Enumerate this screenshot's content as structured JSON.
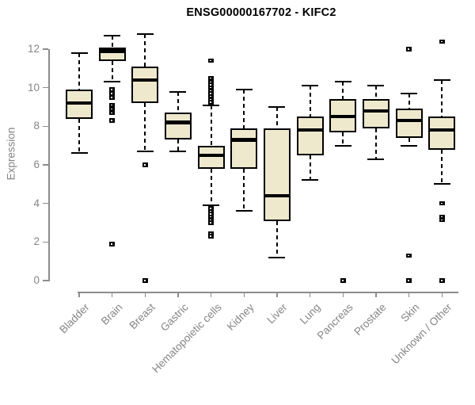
{
  "header": {
    "title": "ENSG00000167702 - KIFC2"
  },
  "colors": {
    "background": "#ffffff",
    "title": "#000000",
    "axis": "#8c8c8c",
    "tick_label": "#858585",
    "box_fill": "#eee8cd",
    "box_border": "#000000",
    "median": "#000000",
    "whisker": "#000000",
    "outlier": "#000000",
    "outlier_notch": "#ffffff"
  },
  "chart_data": {
    "type": "boxplot",
    "title": "ENSG00000167702 - KIFC2",
    "xlabel": "",
    "ylabel": "Expression",
    "ylim": [
      0,
      13
    ],
    "yticks": [
      0,
      2,
      4,
      6,
      8,
      10,
      12
    ],
    "grid": false,
    "legend": false,
    "categories": [
      "Bladder",
      "Brain",
      "Breast",
      "Gastric",
      "Hematopoietic cells",
      "Kidney",
      "Liver",
      "Lung",
      "Pancreas",
      "Prostate",
      "Skin",
      "Unknown / Other"
    ],
    "boxes": [
      {
        "label": "Bladder",
        "whisker_low": 6.6,
        "q1": 8.4,
        "median": 9.2,
        "q3": 9.9,
        "whisker_high": 11.8,
        "outliers": []
      },
      {
        "label": "Brain",
        "whisker_low": 10.3,
        "q1": 11.4,
        "median": 11.9,
        "q3": 12.1,
        "whisker_high": 12.7,
        "outliers": [
          9.9,
          9.7,
          9.5,
          9.1,
          8.9,
          8.7,
          8.3,
          1.9
        ]
      },
      {
        "label": "Breast",
        "whisker_low": 6.7,
        "q1": 9.2,
        "median": 10.4,
        "q3": 11.1,
        "whisker_high": 12.8,
        "outliers": [
          6.0,
          0
        ]
      },
      {
        "label": "Gastric",
        "whisker_low": 6.7,
        "q1": 7.3,
        "median": 8.2,
        "q3": 8.7,
        "whisker_high": 9.8,
        "outliers": []
      },
      {
        "label": "Hematopoietic cells",
        "whisker_low": 3.9,
        "q1": 5.8,
        "median": 6.5,
        "q3": 7.0,
        "whisker_high": 9.1,
        "outliers": [
          11.4,
          10.5,
          10.3,
          10.15,
          10.0,
          9.85,
          9.7,
          9.55,
          9.4,
          9.25,
          3.75,
          3.6,
          3.45,
          3.3,
          3.15,
          3.0,
          2.45,
          2.3
        ]
      },
      {
        "label": "Kidney",
        "whisker_low": 3.6,
        "q1": 5.8,
        "median": 7.3,
        "q3": 7.9,
        "whisker_high": 9.9,
        "outliers": []
      },
      {
        "label": "Liver",
        "whisker_low": 1.2,
        "q1": 3.1,
        "median": 4.4,
        "q3": 7.9,
        "whisker_high": 9.0,
        "outliers": []
      },
      {
        "label": "Lung",
        "whisker_low": 5.2,
        "q1": 6.5,
        "median": 7.8,
        "q3": 8.5,
        "whisker_high": 10.1,
        "outliers": []
      },
      {
        "label": "Pancreas",
        "whisker_low": 7.0,
        "q1": 7.7,
        "median": 8.5,
        "q3": 9.4,
        "whisker_high": 10.3,
        "outliers": [
          0
        ]
      },
      {
        "label": "Prostate",
        "whisker_low": 6.3,
        "q1": 7.9,
        "median": 8.8,
        "q3": 9.4,
        "whisker_high": 10.1,
        "outliers": []
      },
      {
        "label": "Skin",
        "whisker_low": 7.0,
        "q1": 7.4,
        "median": 8.3,
        "q3": 8.9,
        "whisker_high": 9.7,
        "outliers": [
          12.0,
          1.3,
          0
        ]
      },
      {
        "label": "Unknown / Other",
        "whisker_low": 5.0,
        "q1": 6.8,
        "median": 7.8,
        "q3": 8.5,
        "whisker_high": 10.4,
        "outliers": [
          12.4,
          4.0,
          3.3,
          3.15,
          0
        ]
      }
    ]
  }
}
